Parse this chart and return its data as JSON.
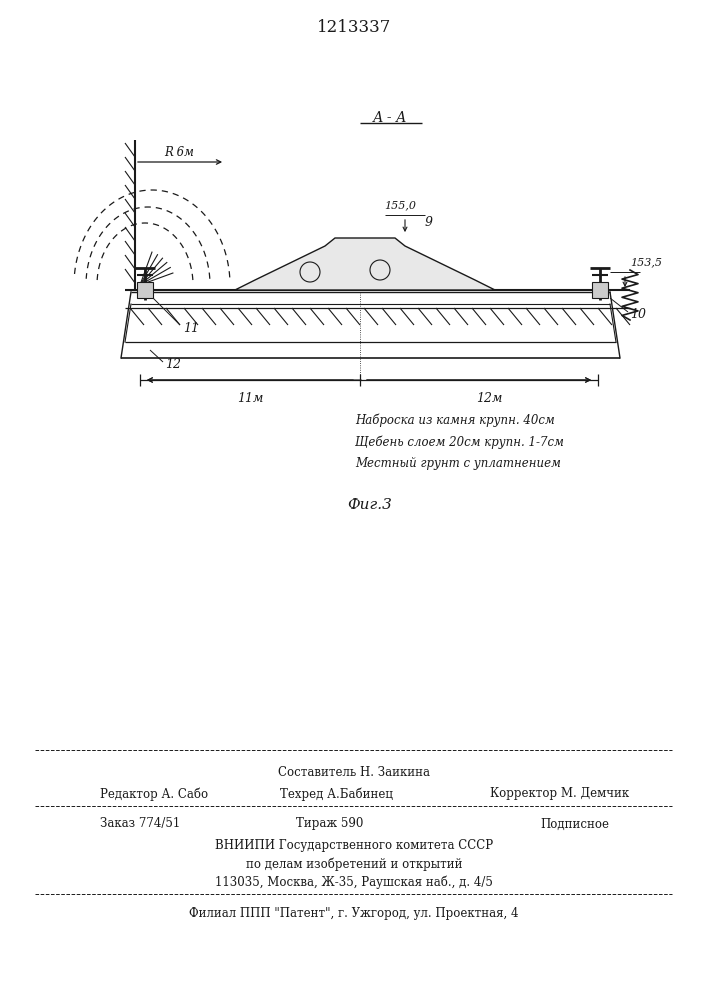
{
  "patent_number": "1213337",
  "section_label": "А - А",
  "fig_label": "Фиг.3",
  "r_label": "R 6м",
  "dim_155": "155,0",
  "dim_1535": "153,5",
  "dim_11m": "11м",
  "dim_12m": "12м",
  "label_9": "9",
  "label_10": "10",
  "label_11": "11",
  "label_12": "12",
  "annotation_line1": "Наброска из камня крупн. 40см",
  "annotation_line2": "Щебень слоем 20см крупн. 1-7см",
  "annotation_line3": "Местный грунт с уплатнением",
  "footer_line1": "Составитель Н. Заикина",
  "footer_line2_left": "Редактор А. Сабо",
  "footer_line2_mid": "Техред А.Бабинец",
  "footer_line2_right": "Корректор М. Демчик",
  "footer_line3_left": "Заказ 774/51",
  "footer_line3_mid": "Тираж 590",
  "footer_line3_right": "Подписное",
  "footer_line4": "ВНИИПИ Государственного комитета СССР",
  "footer_line5": "по делам изобретений и открытий",
  "footer_line6": "113035, Москва, Ж-35, Раушская наб., д. 4/5",
  "footer_line7": "Филиал ППП \"Патент\", г. Ужгород, ул. Проектная, 4",
  "line_color": "#1a1a1a",
  "font_color": "#1a1a1a"
}
